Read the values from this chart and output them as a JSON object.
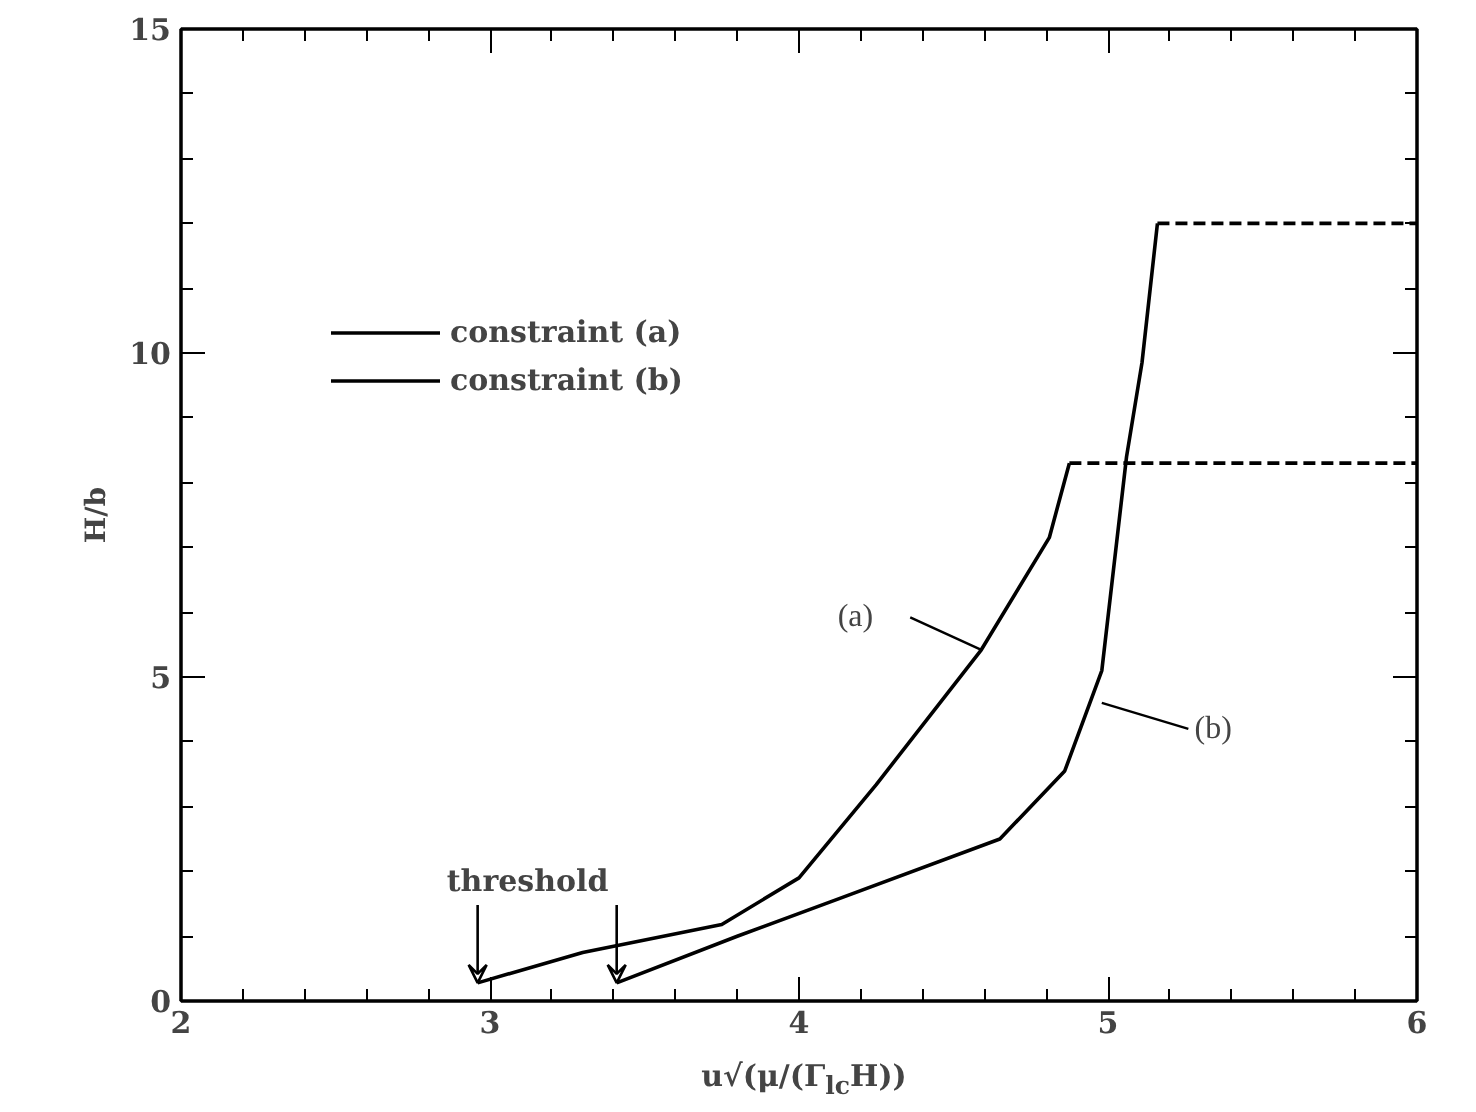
{
  "chart_data": {
    "type": "line",
    "xlabel": "u√(μ/(Γ$_{lc}$H))",
    "ylabel": "H/b",
    "xlim": [
      2,
      6
    ],
    "ylim": [
      0,
      15
    ],
    "xticks": [
      2,
      3,
      4,
      5,
      6
    ],
    "yticks": [
      0,
      5,
      10,
      15
    ],
    "grid": false,
    "legend": "top left",
    "marker": "none",
    "series": [
      {
        "name": "constraint (a)",
        "color": "#000000",
        "line_style": "solid",
        "x": [
          2.96,
          3.3,
          3.75,
          4.0,
          4.25,
          4.59,
          4.81,
          4.875
        ],
        "values": [
          0.28,
          0.75,
          1.18,
          1.9,
          3.34,
          5.42,
          7.15,
          8.3
        ]
      },
      {
        "name": "constraint (b)",
        "color": "#000000",
        "line_style": "solid",
        "x": [
          3.41,
          3.8,
          4.13,
          4.65,
          4.86,
          4.98,
          5.06,
          5.11,
          5.16
        ],
        "values": [
          0.28,
          1.0,
          1.58,
          2.5,
          3.55,
          5.1,
          8.4,
          9.85,
          12.0
        ]
      },
      {
        "color": "#000000",
        "line_style": "dashed",
        "x": [
          4.875,
          6
        ],
        "values": [
          8.3,
          8.3
        ]
      },
      {
        "color": "#000000",
        "line_style": "dashed",
        "x": [
          5.16,
          6
        ],
        "values": [
          12.0,
          12.0
        ]
      }
    ],
    "annotations": [
      {
        "text": "threshold",
        "x": 2.96,
        "y": 0.28
      },
      {
        "text": "(a)",
        "x": 4.59,
        "y": 5.42
      },
      {
        "text": "(b)",
        "x": 4.98,
        "y": 4.6
      }
    ]
  }
}
